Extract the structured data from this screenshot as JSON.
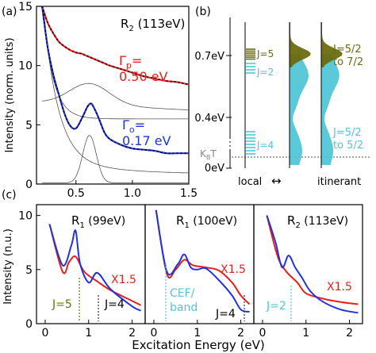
{
  "colors": {
    "red": "#e8201c",
    "blue": "#2233dd",
    "olive": "#6b6b10",
    "cyan": "#52c6d6",
    "gray": "#888888"
  },
  "panels": {
    "a": {
      "label": "(a)",
      "title_main": "R",
      "title_sub": "2",
      "title_rest": " (113eV)",
      "ylabel": "Intensity (norm. units)",
      "gamma_p": {
        "sym": "Γ",
        "sub": "p",
        "eq": "=",
        "val": "0.50 eV"
      },
      "gamma_o": {
        "sym": "Γ",
        "sub": "o",
        "eq": "=",
        "val": "0.17 eV"
      }
    },
    "b": {
      "label": "(b)",
      "local_label": "local",
      "arrow": "↔",
      "itinerant_label": "itinerant",
      "kbt_main": "K",
      "kbt_sub": "B",
      "kbt_rest": "T",
      "ev_ticks": [
        "0.7eV",
        "0.4eV",
        "0eV"
      ],
      "levels": {
        "j5": "J=5",
        "j2": "J=2",
        "j4": "J=4"
      },
      "olive_text": [
        "J=5/2",
        "to 7/2"
      ],
      "cyan_text": [
        "J=5/2",
        "to 5/2"
      ]
    },
    "c": {
      "label": "(c)",
      "ylabel": "Intensity (n.u.)",
      "xlabel": "Excitation Energy (eV)",
      "sub1": {
        "title_main": "R",
        "title_sub": "1",
        "title_rest": " (99eV)",
        "mult": "X1.5",
        "j5": "J=5",
        "j4": "J=4"
      },
      "sub2": {
        "title_main": "R",
        "title_sub": "1",
        "title_rest": " (100eV)",
        "mult": "X1.5",
        "cef": [
          "CEF/",
          "band"
        ],
        "j4": "J=4"
      },
      "sub3": {
        "title_main": "R",
        "title_sub": "2",
        "title_rest": " (113eV)",
        "mult": "X1.5",
        "j2": "J=2"
      }
    }
  },
  "chart_data": [
    {
      "type": "line",
      "panel": "a",
      "xlim": [
        0.15,
        1.5
      ],
      "ylim": [
        0,
        15
      ],
      "xticks": [
        0.5,
        1.0,
        1.5
      ],
      "yticks": [
        0,
        5,
        10,
        15
      ],
      "series": [
        {
          "name": "",
          "color": "red",
          "style": "solid",
          "x": [
            0.2,
            0.25,
            0.3,
            0.35,
            0.4,
            0.45,
            0.5,
            0.55,
            0.6,
            0.65,
            0.7,
            0.75,
            0.8,
            0.9,
            1.0,
            1.1,
            1.2,
            1.3,
            1.4,
            1.5
          ],
          "y": [
            15.5,
            13.6,
            12.7,
            12.0,
            11.6,
            11.3,
            11.1,
            11.0,
            10.8,
            10.6,
            10.4,
            10.2,
            10.0,
            9.7,
            9.4,
            9.1,
            8.9,
            8.7,
            8.6,
            8.4
          ]
        },
        {
          "name": "",
          "color": "blue",
          "style": "solid",
          "x": [
            0.2,
            0.25,
            0.3,
            0.35,
            0.4,
            0.45,
            0.5,
            0.55,
            0.6,
            0.63,
            0.65,
            0.7,
            0.75,
            0.8,
            0.9,
            1.0,
            1.1,
            1.2,
            1.3,
            1.4,
            1.5
          ],
          "y": [
            15.5,
            11.5,
            9.2,
            7.5,
            5.9,
            4.9,
            4.7,
            5.5,
            6.5,
            6.8,
            6.6,
            5.6,
            4.4,
            3.8,
            3.3,
            3.0,
            2.9,
            2.8,
            2.6,
            2.6,
            2.6
          ]
        }
      ]
    },
    {
      "type": "line",
      "panel": "c",
      "subpanels": 3,
      "xlim": [
        -0.2,
        2.3
      ],
      "ylim": [
        0,
        11
      ],
      "xticks": [
        0,
        1,
        2
      ],
      "yticks": [
        0,
        5,
        10
      ],
      "series": [
        {
          "name": "",
          "color": "red",
          "style": "solid",
          "x": [
            0.1,
            0.4,
            0.55,
            0.7,
            0.9,
            1.2,
            1.5,
            2.0,
            2.2
          ],
          "y": [
            9.2,
            4.8,
            5.7,
            6.2,
            4.8,
            3.9,
            3.1,
            2.1,
            1.7
          ]
        },
        {
          "name": "",
          "color": "blue",
          "style": "solid",
          "x": [
            0.1,
            0.4,
            0.6,
            0.7,
            0.8,
            1.0,
            1.2,
            1.5,
            2.0,
            2.2
          ],
          "y": [
            9.2,
            5.4,
            7.2,
            8.6,
            5.6,
            3.8,
            4.7,
            3.2,
            1.6,
            1.2
          ]
        }
      ]
    }
  ]
}
